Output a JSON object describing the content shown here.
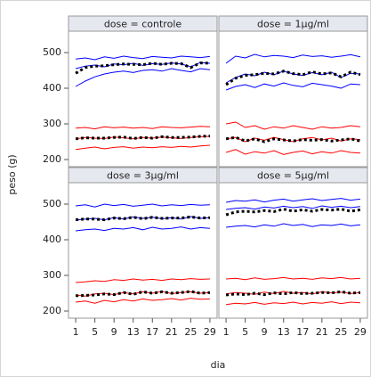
{
  "chart_data": {
    "type": "line",
    "xlabel": "dia",
    "ylabel": "peso (g)",
    "x": [
      1,
      3,
      5,
      7,
      9,
      11,
      13,
      15,
      17,
      19,
      21,
      23,
      25,
      27,
      29
    ],
    "xlim": [
      -0.5,
      30.5
    ],
    "xticks": [
      1,
      5,
      9,
      13,
      17,
      21,
      25,
      29
    ],
    "ylim": [
      180,
      560
    ],
    "yticks": [
      200,
      300,
      400,
      500
    ],
    "facets": [
      {
        "title": "dose = controle",
        "series": [
          {
            "color": "#0000ff",
            "style": "solid",
            "values": [
              482,
              485,
              480,
              488,
              484,
              490,
              486,
              483,
              489,
              487,
              485,
              490,
              488,
              486,
              489
            ]
          },
          {
            "color": "#0000ff",
            "style": "solid",
            "values": [
              455,
              462,
              465,
              460,
              468,
              466,
              470,
              464,
              469,
              467,
              471,
              468,
              460,
              472,
              470
            ]
          },
          {
            "color": "#0000ff",
            "style": "solid",
            "values": [
              405,
              420,
              432,
              440,
              445,
              448,
              444,
              450,
              452,
              448,
              455,
              450,
              446,
              455,
              452
            ]
          },
          {
            "color": "#ff0000",
            "style": "solid",
            "values": [
              288,
              290,
              286,
              292,
              289,
              291,
              288,
              290,
              287,
              292,
              290,
              289,
              291,
              293,
              292
            ]
          },
          {
            "color": "#ff0000",
            "style": "solid",
            "values": [
              258,
              262,
              260,
              259,
              263,
              261,
              258,
              262,
              260,
              263,
              261,
              259,
              262,
              264,
              265
            ]
          },
          {
            "color": "#ff0000",
            "style": "solid",
            "values": [
              228,
              232,
              235,
              230,
              234,
              236,
              232,
              235,
              233,
              236,
              234,
              237,
              235,
              238,
              240
            ]
          },
          {
            "color": "#000000",
            "style": "dotted",
            "values": [
              442,
              458,
              462,
              463,
              466,
              468,
              467,
              466,
              470,
              467,
              470,
              469,
              458,
              471,
              470
            ]
          },
          {
            "color": "#000000",
            "style": "dotted",
            "values": [
              258,
              261,
              260,
              260,
              262,
              263,
              259,
              262,
              260,
              264,
              262,
              262,
              263,
              265,
              266
            ]
          }
        ]
      },
      {
        "title": "dose = 1µg/ml",
        "series": [
          {
            "color": "#0000ff",
            "style": "solid",
            "values": [
              470,
              490,
              485,
              495,
              488,
              492,
              490,
              486,
              493,
              489,
              491,
              487,
              490,
              494,
              488
            ]
          },
          {
            "color": "#0000ff",
            "style": "solid",
            "values": [
              415,
              430,
              440,
              435,
              445,
              438,
              448,
              440,
              436,
              444,
              438,
              445,
              430,
              442,
              440
            ]
          },
          {
            "color": "#0000ff",
            "style": "solid",
            "values": [
              395,
              405,
              410,
              402,
              412,
              406,
              415,
              408,
              404,
              414,
              410,
              406,
              400,
              412,
              410
            ]
          },
          {
            "color": "#ff0000",
            "style": "solid",
            "values": [
              300,
              305,
              290,
              295,
              285,
              292,
              288,
              295,
              290,
              285,
              292,
              288,
              290,
              295,
              292
            ]
          },
          {
            "color": "#ff0000",
            "style": "solid",
            "values": [
              258,
              262,
              250,
              260,
              254,
              262,
              256,
              250,
              258,
              262,
              255,
              260,
              252,
              258,
              256
            ]
          },
          {
            "color": "#ff0000",
            "style": "solid",
            "values": [
              220,
              228,
              215,
              222,
              218,
              225,
              214,
              220,
              224,
              216,
              222,
              218,
              225,
              220,
              218
            ]
          },
          {
            "color": "#000000",
            "style": "dotted",
            "values": [
              410,
              428,
              436,
              438,
              442,
              440,
              448,
              441,
              438,
              446,
              440,
              443,
              432,
              445,
              438
            ]
          },
          {
            "color": "#000000",
            "style": "dotted",
            "values": [
              258,
              262,
              252,
              258,
              250,
              258,
              255,
              252,
              256,
              254,
              256,
              252,
              255,
              258,
              252
            ]
          }
        ]
      },
      {
        "title": "dose = 3µg/ml",
        "series": [
          {
            "color": "#0000ff",
            "style": "solid",
            "values": [
              495,
              498,
              492,
              500,
              496,
              499,
              494,
              497,
              500,
              495,
              498,
              496,
              499,
              497,
              498
            ]
          },
          {
            "color": "#0000ff",
            "style": "solid",
            "values": [
              455,
              458,
              460,
              456,
              462,
              458,
              464,
              460,
              463,
              459,
              462,
              458,
              465,
              460,
              462
            ]
          },
          {
            "color": "#0000ff",
            "style": "solid",
            "values": [
              425,
              428,
              430,
              426,
              432,
              430,
              434,
              428,
              435,
              430,
              432,
              436,
              430,
              434,
              432
            ]
          },
          {
            "color": "#ff0000",
            "style": "solid",
            "values": [
              280,
              282,
              285,
              283,
              288,
              286,
              290,
              287,
              289,
              286,
              290,
              288,
              291,
              289,
              290
            ]
          },
          {
            "color": "#ff0000",
            "style": "solid",
            "values": [
              245,
              242,
              248,
              250,
              246,
              252,
              248,
              254,
              250,
              255,
              249,
              252,
              254,
              250,
              252
            ]
          },
          {
            "color": "#ff0000",
            "style": "solid",
            "values": [
              225,
              228,
              222,
              230,
              226,
              232,
              228,
              234,
              230,
              232,
              235,
              231,
              236,
              233,
              234
            ]
          },
          {
            "color": "#000000",
            "style": "dotted",
            "values": [
              456,
              458,
              458,
              456,
              461,
              459,
              463,
              459,
              463,
              460,
              461,
              461,
              464,
              461,
              462
            ]
          },
          {
            "color": "#000000",
            "style": "dotted",
            "values": [
              243,
              244,
              245,
              248,
              246,
              252,
              247,
              254,
              250,
              254,
              250,
              252,
              255,
              250,
              252
            ]
          }
        ]
      },
      {
        "title": "dose = 5µg/ml",
        "series": [
          {
            "color": "#0000ff",
            "style": "solid",
            "values": [
              505,
              510,
              508,
              512,
              506,
              511,
              514,
              508,
              512,
              515,
              510,
              513,
              516,
              511,
              514
            ]
          },
          {
            "color": "#0000ff",
            "style": "solid",
            "values": [
              485,
              488,
              490,
              486,
              492,
              489,
              494,
              490,
              493,
              488,
              495,
              491,
              494,
              490,
              493
            ]
          },
          {
            "color": "#0000ff",
            "style": "solid",
            "values": [
              435,
              438,
              440,
              436,
              442,
              438,
              445,
              440,
              443,
              437,
              442,
              440,
              444,
              439,
              442
            ]
          },
          {
            "color": "#ff0000",
            "style": "solid",
            "values": [
              290,
              292,
              288,
              293,
              289,
              291,
              294,
              290,
              292,
              289,
              293,
              291,
              294,
              290,
              292
            ]
          },
          {
            "color": "#ff0000",
            "style": "solid",
            "values": [
              248,
              252,
              250,
              247,
              253,
              249,
              255,
              250,
              252,
              248,
              254,
              251,
              253,
              249,
              252
            ]
          },
          {
            "color": "#ff0000",
            "style": "solid",
            "values": [
              218,
              222,
              220,
              224,
              219,
              223,
              221,
              225,
              220,
              224,
              222,
              226,
              221,
              225,
              223
            ]
          },
          {
            "color": "#000000",
            "style": "dotted",
            "values": [
              470,
              478,
              480,
              478,
              482,
              479,
              486,
              480,
              484,
              480,
              485,
              483,
              486,
              480,
              484
            ]
          },
          {
            "color": "#000000",
            "style": "dotted",
            "values": [
              245,
              248,
              246,
              250,
              246,
              251,
              248,
              252,
              249,
              250,
              252,
              251,
              254,
              250,
              252
            ]
          }
        ]
      }
    ]
  }
}
